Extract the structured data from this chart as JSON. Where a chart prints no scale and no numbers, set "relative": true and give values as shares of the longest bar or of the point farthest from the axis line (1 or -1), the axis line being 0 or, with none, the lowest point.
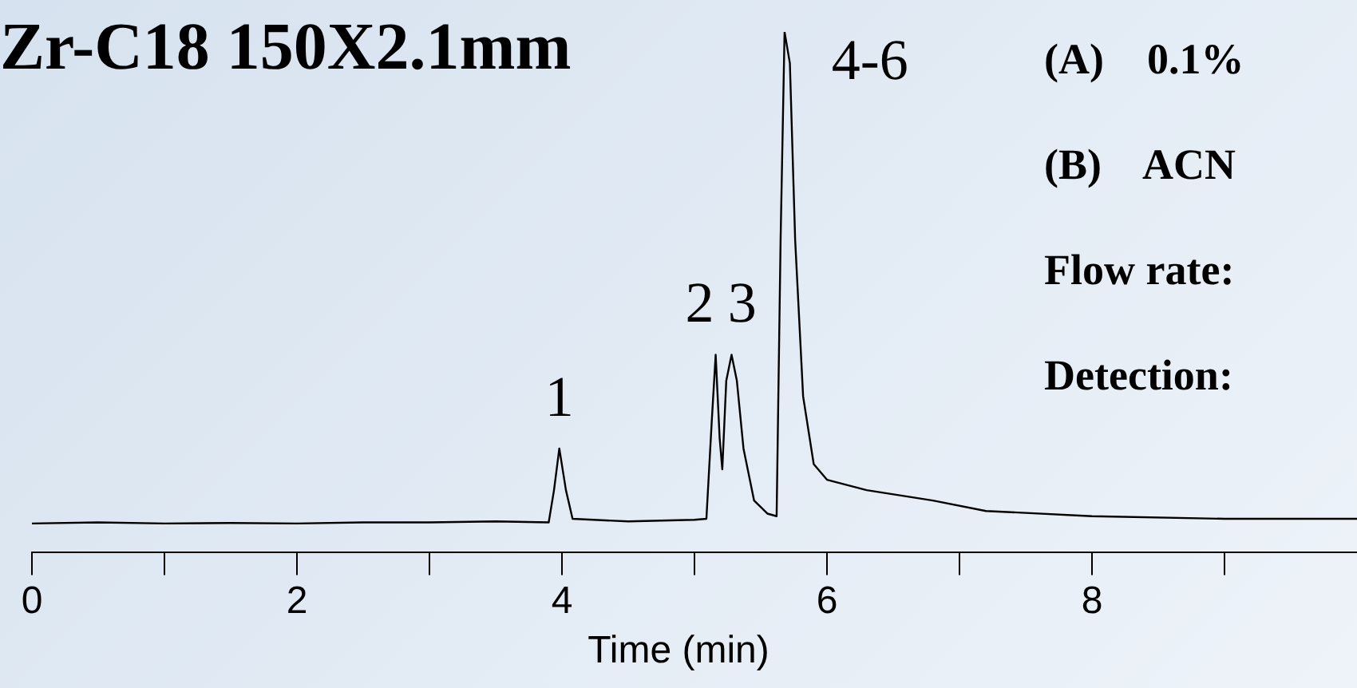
{
  "chart_data": {
    "type": "line",
    "title": "Zr-C18 150X2.1mm",
    "xlabel": "Time (min)",
    "relative": true,
    "marker": "none",
    "x": [
      0,
      0.5,
      1,
      1.5,
      2,
      2.5,
      3,
      3.5,
      3.9,
      3.94,
      3.98,
      4.03,
      4.08,
      4.5,
      5,
      5.09,
      5.13,
      5.16,
      5.19,
      5.21,
      5.24,
      5.28,
      5.32,
      5.37,
      5.45,
      5.55,
      5.62,
      5.65,
      5.68,
      5.72,
      5.76,
      5.82,
      5.9,
      6,
      6.3,
      6.8,
      7.2,
      8,
      9,
      10
    ],
    "series": [
      {
        "color": "#000000",
        "values": [
          0.056,
          0.058,
          0.056,
          0.057,
          0.056,
          0.058,
          0.058,
          0.06,
          0.058,
          0.12,
          0.2,
          0.12,
          0.065,
          0.06,
          0.063,
          0.065,
          0.25,
          0.38,
          0.22,
          0.16,
          0.33,
          0.38,
          0.33,
          0.2,
          0.1,
          0.075,
          0.07,
          0.6,
          1,
          0.94,
          0.6,
          0.3,
          0.17,
          0.14,
          0.12,
          0.1,
          0.08,
          0.07,
          0.065,
          0.065
        ]
      }
    ],
    "xlim": [
      0,
      10
    ],
    "xticks": [
      0,
      {
        "value": 1,
        "label": null
      },
      2,
      {
        "value": 3,
        "label": null
      },
      4,
      {
        "value": 5,
        "label": null
      },
      6,
      {
        "value": 7,
        "label": null
      },
      8,
      {
        "value": 9,
        "label": null
      }
    ],
    "annotations": [
      {
        "text": "1",
        "x": 3.98,
        "y": 0.2
      },
      {
        "text": "2",
        "x": 5.16,
        "y": 0.38
      },
      {
        "text": "3",
        "x": 5.28,
        "y": 0.38
      },
      {
        "text": "4-6",
        "x": 5.68,
        "y": 1
      },
      "(A)    0.1%",
      "(B)    ACN",
      "Flow rate:",
      "Detection:"
    ]
  }
}
